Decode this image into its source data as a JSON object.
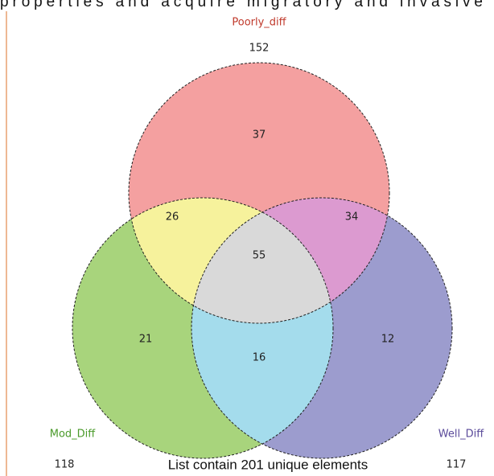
{
  "top_text": "properties and acquire migratory and invasive",
  "sets": [
    {
      "name": "Poorly_diff",
      "total": 152
    },
    {
      "name": "Mod_Diff",
      "total": 118
    },
    {
      "name": "Well_Diff",
      "total": 117
    }
  ],
  "regions": {
    "poorly_only": 37,
    "poorly_mod": 26,
    "poorly_well": 34,
    "all": 55,
    "mod_only": 21,
    "well_only": 12,
    "mod_well": 16
  },
  "caption": "List contain 201 unique elements"
}
